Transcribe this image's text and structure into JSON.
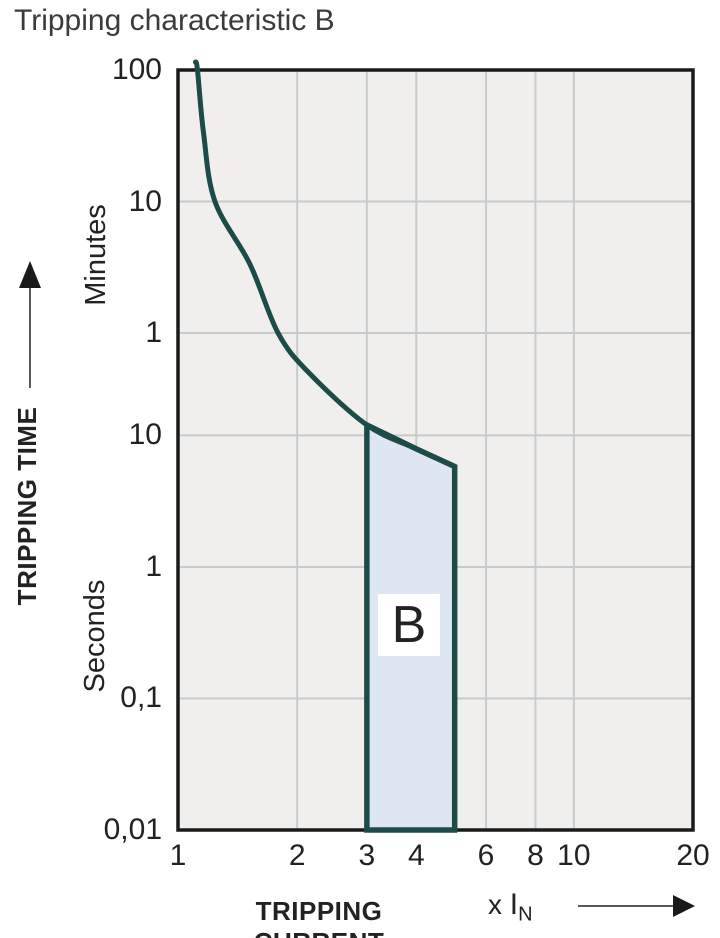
{
  "colors": {
    "curve": "#1d4c48",
    "band_fill": "#dfe6f3",
    "plot_bg": "#f0efee",
    "grid": "#c9cacb",
    "border": "#1a1a1a",
    "text": "#242124",
    "arrow": "#58585a"
  },
  "chart_data": {
    "type": "line",
    "title": "Tripping characteristic B",
    "x_axis": {
      "label": "TRIPPING CURRENT",
      "multiplier_prefix": "x ",
      "multiplier_current": "I",
      "multiplier_sub": "N",
      "scale": "log",
      "min": 1,
      "max": 20,
      "ticks": [
        "1",
        "2",
        "3",
        "4",
        "6",
        "8",
        "10",
        "20"
      ],
      "tick_values": [
        1,
        2,
        3,
        4,
        6,
        8,
        10,
        20
      ],
      "grid_values": [
        2,
        3,
        4,
        6,
        8,
        10
      ]
    },
    "y_axis": {
      "label": "TRIPPING TIME",
      "scale": "log",
      "min_seconds": 0.01,
      "max_seconds": 6000,
      "unit_labels": [
        "Minutes",
        "Seconds"
      ],
      "ticks": [
        {
          "label": "100",
          "unit": "min",
          "seconds": 6000
        },
        {
          "label": "10",
          "unit": "min",
          "seconds": 600
        },
        {
          "label": "1",
          "unit": "min",
          "seconds": 60
        },
        {
          "label": "10",
          "unit": "s",
          "seconds": 10
        },
        {
          "label": "1",
          "unit": "s",
          "seconds": 1
        },
        {
          "label": "0,1",
          "unit": "s",
          "seconds": 0.1
        },
        {
          "label": "0,01",
          "unit": "s",
          "seconds": 0.01
        }
      ],
      "grid_seconds": [
        600,
        60,
        10,
        1,
        0.1
      ]
    },
    "curve": {
      "name": "tripping-characteristic-curve",
      "points": [
        [
          1.12,
          6000
        ],
        [
          1.16,
          2000
        ],
        [
          1.24,
          600
        ],
        [
          1.52,
          200
        ],
        [
          1.79,
          60
        ],
        [
          2.14,
          30
        ],
        [
          3,
          12
        ],
        [
          4,
          7.9
        ],
        [
          5,
          5.8
        ]
      ]
    },
    "band": {
      "label": "B",
      "x_min": 3,
      "x_max": 5,
      "top_points": [
        [
          3,
          12
        ],
        [
          4,
          7.9
        ],
        [
          5,
          5.8
        ]
      ],
      "bottom_seconds": 0.01
    }
  }
}
